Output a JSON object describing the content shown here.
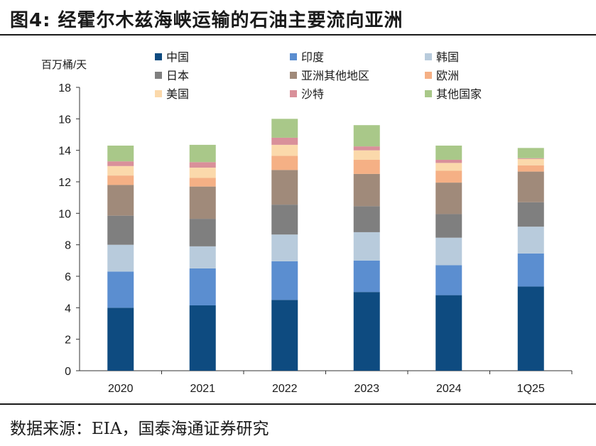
{
  "header": {
    "title": "图4:  经霍尔木兹海峡运输的石油主要流向亚洲"
  },
  "footer": {
    "source": "数据来源：EIA，国泰海通证券研究"
  },
  "chart_data": {
    "type": "bar",
    "stacked": true,
    "ylabel": "百万桶/天",
    "ylim": [
      0,
      18
    ],
    "yticks": [
      0,
      2,
      4,
      6,
      8,
      10,
      12,
      14,
      16,
      18
    ],
    "categories": [
      "2020",
      "2021",
      "2022",
      "2023",
      "2024",
      "1Q25"
    ],
    "legend_position": "top",
    "series": [
      {
        "name": "中国",
        "color": "#0e4b80",
        "values": [
          4.0,
          4.15,
          4.5,
          5.0,
          4.8,
          5.35
        ]
      },
      {
        "name": "印度",
        "color": "#5b8ed0",
        "values": [
          2.3,
          2.35,
          2.45,
          2.0,
          1.9,
          2.1
        ]
      },
      {
        "name": "韩国",
        "color": "#b8cbdc",
        "values": [
          1.7,
          1.4,
          1.7,
          1.8,
          1.75,
          1.7
        ]
      },
      {
        "name": "日本",
        "color": "#7f7f7f",
        "values": [
          1.85,
          1.75,
          1.9,
          1.65,
          1.5,
          1.55
        ]
      },
      {
        "name": "亚洲其他地区",
        "color": "#a08a7a",
        "values": [
          1.95,
          2.05,
          2.2,
          2.05,
          2.0,
          1.95
        ]
      },
      {
        "name": "欧洲",
        "color": "#f5b085",
        "values": [
          0.6,
          0.55,
          0.9,
          0.9,
          0.75,
          0.4
        ]
      },
      {
        "name": "美国",
        "color": "#fbd9ab",
        "values": [
          0.6,
          0.65,
          0.7,
          0.6,
          0.5,
          0.4
        ]
      },
      {
        "name": "沙特",
        "color": "#d9909a",
        "values": [
          0.3,
          0.35,
          0.45,
          0.25,
          0.2,
          0.05
        ]
      },
      {
        "name": "其他国家",
        "color": "#a9c889",
        "values": [
          1.0,
          1.1,
          1.2,
          1.35,
          0.9,
          0.65
        ]
      }
    ]
  }
}
